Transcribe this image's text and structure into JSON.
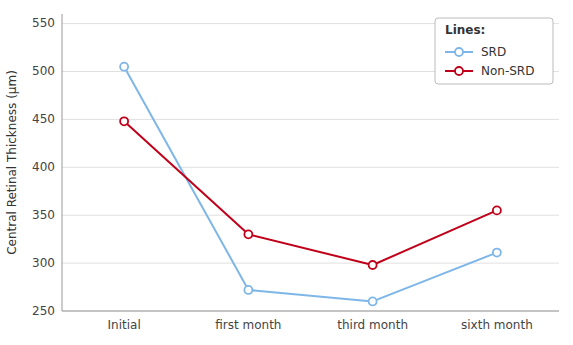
{
  "chart_data": {
    "type": "line",
    "categories": [
      "Initial",
      "first month",
      "third month",
      "sixth month"
    ],
    "series": [
      {
        "name": "SRD",
        "color": "#7EB6E8",
        "values": [
          505,
          272,
          260,
          311
        ],
        "marker": "circle"
      },
      {
        "name": "Non-SRD",
        "color": "#C0001A",
        "values": [
          448,
          330,
          298,
          355
        ],
        "marker": "circle"
      }
    ],
    "ylabel": "Central Retinal Thickness (μm)",
    "ylim": [
      250,
      560
    ],
    "yticks": [
      250,
      300,
      350,
      400,
      450,
      500,
      550
    ],
    "grid": true,
    "legend": "upper right",
    "legend_title": "Lines:"
  }
}
